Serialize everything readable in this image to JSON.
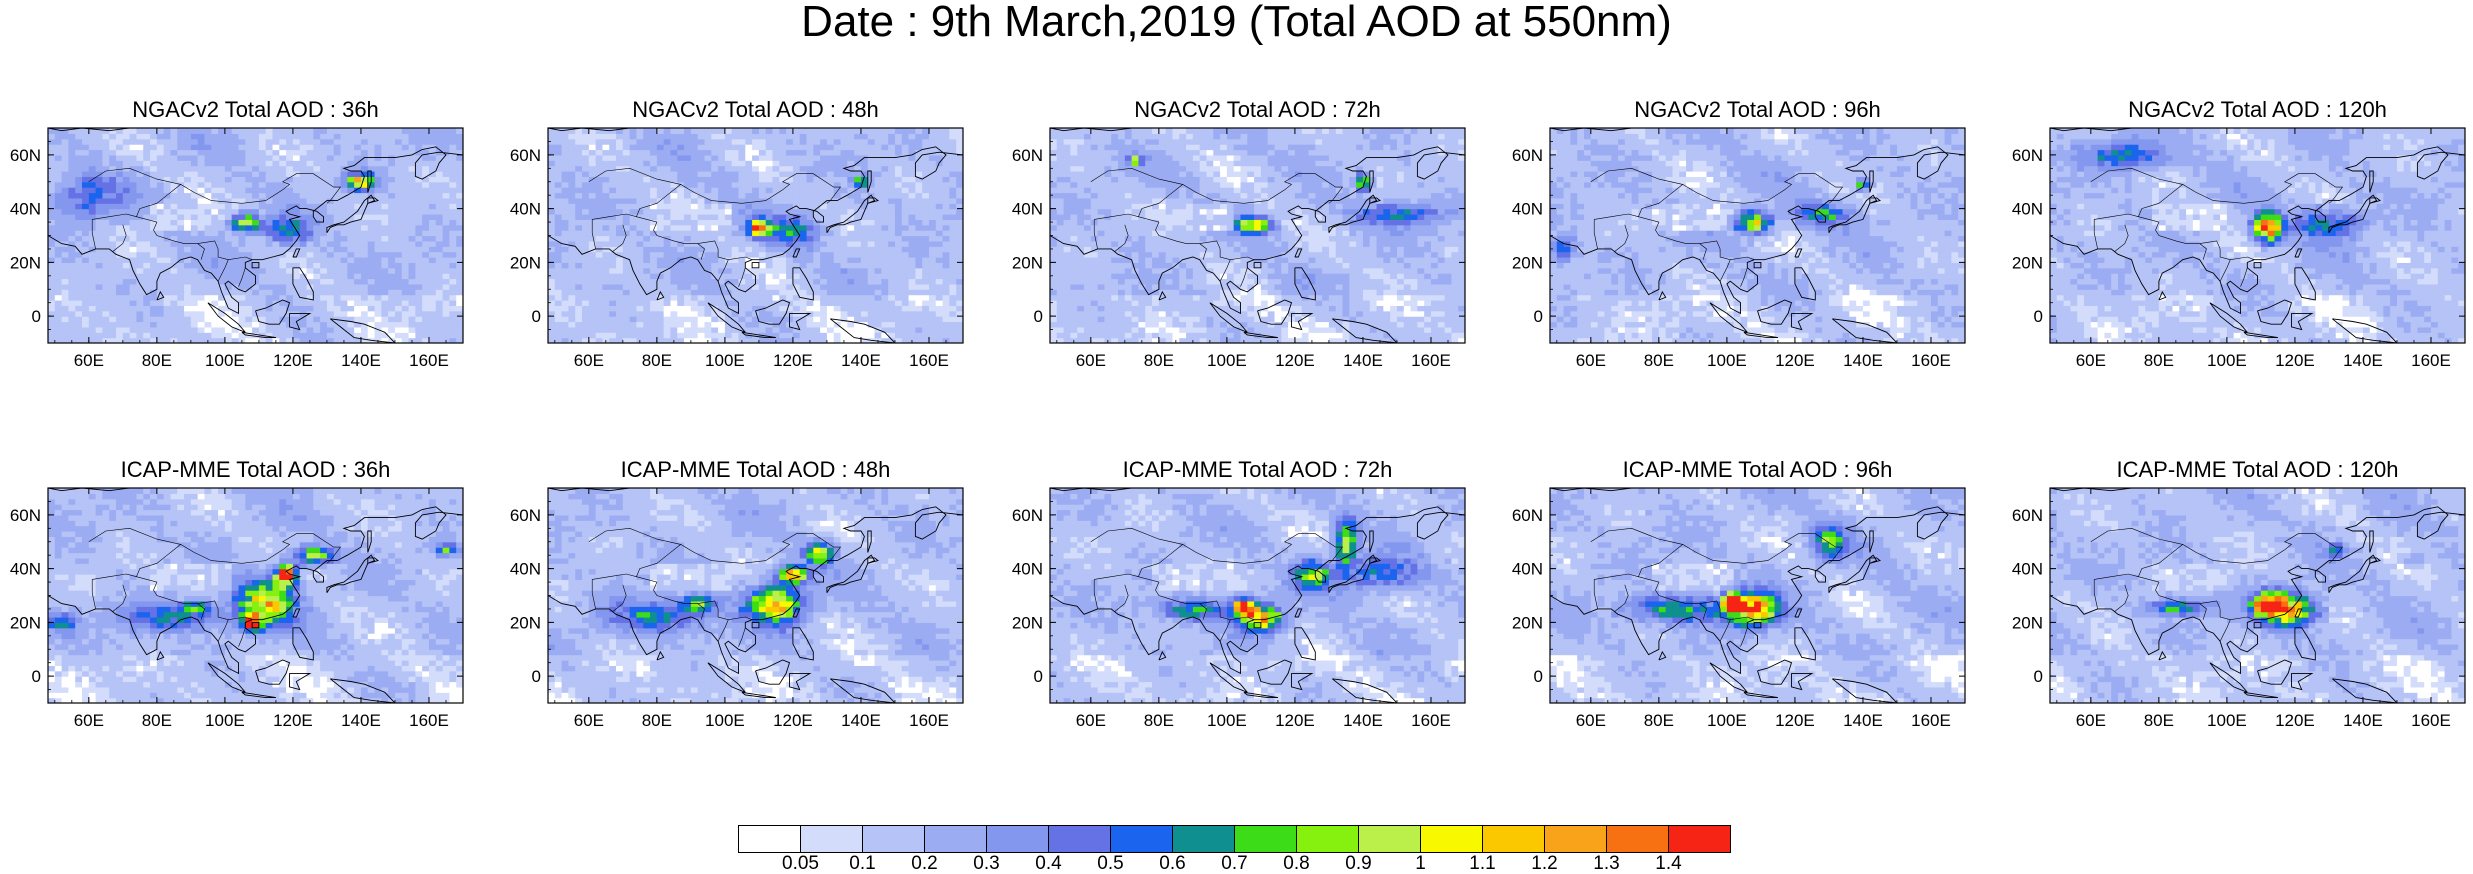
{
  "title": "Date : 9th March,2019 (Total AOD at 550nm)",
  "map_extent": {
    "lon": [
      48,
      170
    ],
    "lat": [
      -10,
      70
    ]
  },
  "lat_ticks": [
    {
      "value": 0,
      "label": "0"
    },
    {
      "value": 20,
      "label": "20N"
    },
    {
      "value": 40,
      "label": "40N"
    },
    {
      "value": 60,
      "label": "60N"
    }
  ],
  "lon_ticks": [
    {
      "value": 60,
      "label": "60E"
    },
    {
      "value": 80,
      "label": "80E"
    },
    {
      "value": 100,
      "label": "100E"
    },
    {
      "value": 120,
      "label": "120E"
    },
    {
      "value": 140,
      "label": "140E"
    },
    {
      "value": 160,
      "label": "160E"
    }
  ],
  "panels": [
    {
      "title": "NGACv2 Total AOD : 36h",
      "row": 0,
      "col": 0,
      "hotspots": [
        {
          "lon": 140,
          "lat": 50,
          "peak": 1.0,
          "rlon": 4,
          "rlat": 3
        },
        {
          "lon": 106,
          "lat": 35,
          "peak": 0.9,
          "rlon": 4,
          "rlat": 3
        },
        {
          "lon": 118,
          "lat": 32,
          "peak": 0.45,
          "rlon": 7,
          "rlat": 5
        },
        {
          "lon": 60,
          "lat": 45,
          "peak": 0.35,
          "rlon": 10,
          "rlat": 8
        }
      ]
    },
    {
      "title": "NGACv2 Total AOD : 48h",
      "row": 0,
      "col": 1,
      "hotspots": [
        {
          "lon": 110,
          "lat": 33,
          "peak": 1.1,
          "rlon": 3,
          "rlat": 3
        },
        {
          "lon": 140,
          "lat": 50,
          "peak": 0.7,
          "rlon": 2,
          "rlat": 2
        },
        {
          "lon": 120,
          "lat": 32,
          "peak": 0.45,
          "rlon": 8,
          "rlat": 5
        }
      ]
    },
    {
      "title": "NGACv2 Total AOD : 72h",
      "row": 0,
      "col": 2,
      "hotspots": [
        {
          "lon": 108,
          "lat": 34,
          "peak": 0.9,
          "rlon": 5,
          "rlat": 3
        },
        {
          "lon": 140,
          "lat": 50,
          "peak": 0.85,
          "rlon": 2,
          "rlat": 3
        },
        {
          "lon": 73,
          "lat": 58,
          "peak": 0.7,
          "rlon": 2,
          "rlat": 2
        },
        {
          "lon": 150,
          "lat": 38,
          "peak": 0.45,
          "rlon": 12,
          "rlat": 4
        }
      ]
    },
    {
      "title": "NGACv2 Total AOD : 96h",
      "row": 0,
      "col": 3,
      "hotspots": [
        {
          "lon": 108,
          "lat": 35,
          "peak": 0.9,
          "rlon": 5,
          "rlat": 4
        },
        {
          "lon": 140,
          "lat": 49,
          "peak": 0.8,
          "rlon": 2,
          "rlat": 2
        },
        {
          "lon": 128,
          "lat": 38,
          "peak": 0.5,
          "rlon": 8,
          "rlat": 4
        },
        {
          "lon": 52,
          "lat": 25,
          "peak": 0.5,
          "rlon": 3,
          "rlat": 5
        }
      ]
    },
    {
      "title": "NGACv2 Total AOD : 120h",
      "row": 0,
      "col": 4,
      "hotspots": [
        {
          "lon": 112,
          "lat": 33,
          "peak": 1.25,
          "rlon": 4,
          "rlat": 5
        },
        {
          "lon": 70,
          "lat": 60,
          "peak": 0.45,
          "rlon": 12,
          "rlat": 5
        },
        {
          "lon": 130,
          "lat": 35,
          "peak": 0.45,
          "rlon": 10,
          "rlat": 6
        }
      ]
    },
    {
      "title": "ICAP-MME Total AOD : 36h",
      "row": 1,
      "col": 0,
      "hotspots": [
        {
          "lon": 118,
          "lat": 38,
          "peak": 1.3,
          "rlon": 3,
          "rlat": 4
        },
        {
          "lon": 112,
          "lat": 28,
          "peak": 0.95,
          "rlon": 8,
          "rlat": 8
        },
        {
          "lon": 108,
          "lat": 20,
          "peak": 1.0,
          "rlon": 3,
          "rlat": 3
        },
        {
          "lon": 126,
          "lat": 45,
          "peak": 0.85,
          "rlon": 5,
          "rlat": 3
        },
        {
          "lon": 92,
          "lat": 26,
          "peak": 0.6,
          "rlon": 4,
          "rlat": 2
        },
        {
          "lon": 165,
          "lat": 47,
          "peak": 0.6,
          "rlon": 3,
          "rlat": 2
        },
        {
          "lon": 52,
          "lat": 20,
          "peak": 0.5,
          "rlon": 4,
          "rlat": 3
        },
        {
          "lon": 85,
          "lat": 22,
          "peak": 0.45,
          "rlon": 15,
          "rlat": 5
        }
      ]
    },
    {
      "title": "ICAP-MME Total AOD : 48h",
      "row": 1,
      "col": 1,
      "hotspots": [
        {
          "lon": 120,
          "lat": 38,
          "peak": 1.2,
          "rlon": 4,
          "rlat": 3
        },
        {
          "lon": 115,
          "lat": 27,
          "peak": 1.0,
          "rlon": 8,
          "rlat": 7
        },
        {
          "lon": 128,
          "lat": 46,
          "peak": 0.8,
          "rlon": 4,
          "rlat": 4
        },
        {
          "lon": 92,
          "lat": 27,
          "peak": 0.55,
          "rlon": 6,
          "rlat": 3
        },
        {
          "lon": 80,
          "lat": 22,
          "peak": 0.45,
          "rlon": 14,
          "rlat": 6
        }
      ]
    },
    {
      "title": "ICAP-MME Total AOD : 72h",
      "row": 1,
      "col": 2,
      "hotspots": [
        {
          "lon": 105,
          "lat": 26,
          "peak": 1.3,
          "rlon": 3,
          "rlat": 3
        },
        {
          "lon": 110,
          "lat": 22,
          "peak": 1.05,
          "rlon": 6,
          "rlat": 5
        },
        {
          "lon": 135,
          "lat": 50,
          "peak": 0.9,
          "rlon": 3,
          "rlat": 8
        },
        {
          "lon": 125,
          "lat": 38,
          "peak": 0.7,
          "rlon": 5,
          "rlat": 5
        },
        {
          "lon": 90,
          "lat": 25,
          "peak": 0.5,
          "rlon": 10,
          "rlat": 4
        },
        {
          "lon": 145,
          "lat": 38,
          "peak": 0.45,
          "rlon": 12,
          "rlat": 6
        }
      ]
    },
    {
      "title": "ICAP-MME Total AOD : 96h",
      "row": 1,
      "col": 3,
      "hotspots": [
        {
          "lon": 102,
          "lat": 28,
          "peak": 1.4,
          "rlon": 3,
          "rlat": 3
        },
        {
          "lon": 108,
          "lat": 25,
          "peak": 1.15,
          "rlon": 7,
          "rlat": 6
        },
        {
          "lon": 130,
          "lat": 50,
          "peak": 0.6,
          "rlon": 5,
          "rlat": 6
        },
        {
          "lon": 85,
          "lat": 25,
          "peak": 0.5,
          "rlon": 16,
          "rlat": 5
        }
      ]
    },
    {
      "title": "ICAP-MME Total AOD : 120h",
      "row": 1,
      "col": 4,
      "hotspots": [
        {
          "lon": 112,
          "lat": 27,
          "peak": 1.25,
          "rlon": 4,
          "rlat": 4
        },
        {
          "lon": 118,
          "lat": 25,
          "peak": 1.05,
          "rlon": 8,
          "rlat": 6
        },
        {
          "lon": 86,
          "lat": 26,
          "peak": 0.55,
          "rlon": 8,
          "rlat": 3
        },
        {
          "lon": 132,
          "lat": 47,
          "peak": 0.6,
          "rlon": 2,
          "rlat": 2
        },
        {
          "lon": 155,
          "lat": 44,
          "peak": 0.5,
          "rlon": 3,
          "rlat": 1
        }
      ]
    }
  ],
  "colorbar": {
    "colors": [
      "#ffffff",
      "#d3dcfb",
      "#b5c3f7",
      "#9cacf3",
      "#8497ef",
      "#6572e6",
      "#1a64ee",
      "#0f8f8f",
      "#3cdd18",
      "#86f00e",
      "#bbf04a",
      "#f8f800",
      "#fbc800",
      "#f9a31b",
      "#f77012",
      "#f52414"
    ],
    "levels": [
      "0.05",
      "0.1",
      "0.2",
      "0.3",
      "0.4",
      "0.5",
      "0.6",
      "0.7",
      "0.8",
      "0.9",
      "1",
      "1.1",
      "1.2",
      "1.3",
      "1.4"
    ],
    "level_values": [
      0.05,
      0.1,
      0.2,
      0.3,
      0.4,
      0.5,
      0.6,
      0.7,
      0.8,
      0.9,
      1.0,
      1.1,
      1.2,
      1.3,
      1.4
    ]
  }
}
